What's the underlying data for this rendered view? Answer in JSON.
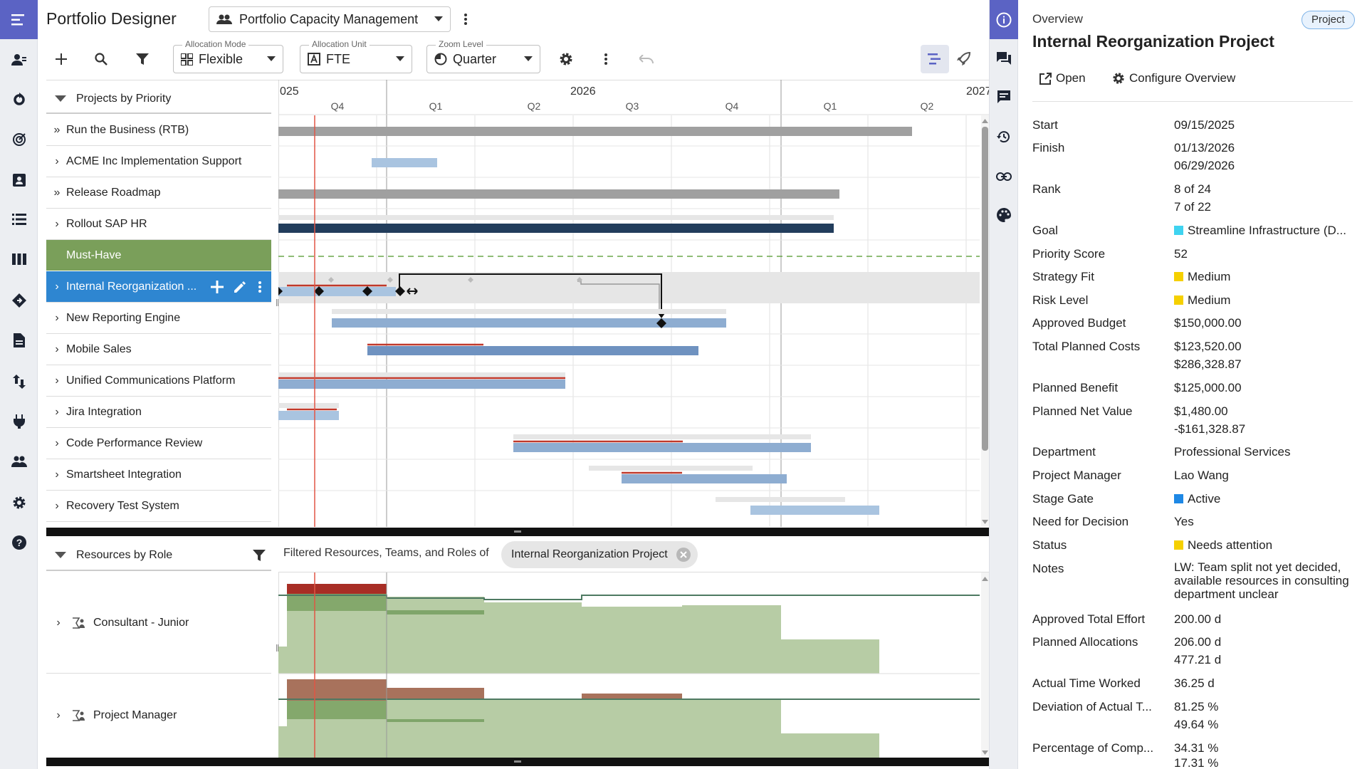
{
  "app": {
    "title": "Portfolio Designer",
    "portfolio": "Portfolio Capacity Management"
  },
  "toolbar": {
    "allocation_mode": {
      "legend": "Allocation Mode",
      "value": "Flexible"
    },
    "allocation_unit": {
      "legend": "Allocation Unit",
      "value": "FTE"
    },
    "zoom_level": {
      "legend": "Zoom Level",
      "value": "Quarter"
    }
  },
  "rail": [
    "menu-icon",
    "users-icon",
    "refresh-icon",
    "target-icon",
    "badge-icon",
    "list-icon",
    "columns-icon",
    "diamond-icon",
    "document-icon",
    "sort-icon",
    "plug-icon",
    "group-icon",
    "gear-icon",
    "help-icon"
  ],
  "projects": {
    "header": "Projects by Priority",
    "items": [
      {
        "label": "Run the Business (RTB)",
        "chev": "»"
      },
      {
        "label": "ACME Inc Implementation Support",
        "chev": "›"
      },
      {
        "label": "Release Roadmap",
        "chev": "»"
      },
      {
        "label": "Rollout SAP HR",
        "chev": "›"
      },
      {
        "label": "Must-Have",
        "chev": ""
      },
      {
        "label": "Internal Reorganization ...",
        "chev": "›"
      },
      {
        "label": "New Reporting Engine",
        "chev": "›"
      },
      {
        "label": "Mobile Sales",
        "chev": "›"
      },
      {
        "label": "Unified Communications Platform",
        "chev": "›"
      },
      {
        "label": "Jira Integration",
        "chev": "›"
      },
      {
        "label": "Code Performance Review",
        "chev": "›"
      },
      {
        "label": "Smartsheet Integration",
        "chev": "›"
      },
      {
        "label": "Recovery Test System",
        "chev": "›"
      }
    ]
  },
  "timeline": {
    "years": [
      "025",
      "2026",
      "2027"
    ],
    "quarters": [
      "Q4",
      "Q1",
      "Q2",
      "Q3",
      "Q4",
      "Q1",
      "Q2"
    ]
  },
  "resources": {
    "header": "Resources by Role",
    "filter_text": "Filtered Resources, Teams, and Roles of",
    "chip": "Internal Reorganization Project",
    "items": [
      "Consultant - Junior",
      "Project Manager"
    ]
  },
  "panel": {
    "section": "Overview",
    "badge": "Project",
    "title": "Internal Reorganization Project",
    "open": "Open",
    "configure": "Configure Overview",
    "fields": [
      {
        "k": "Start",
        "v": "09/15/2025"
      },
      {
        "k": "Finish",
        "v": "01/13/2026",
        "sub": "06/29/2026"
      },
      {
        "k": "Rank",
        "v": "8 of 24",
        "sub": "7 of 22"
      },
      {
        "k": "Goal",
        "v": "Streamline Infrastructure (D...",
        "sw": "#3fd3f0"
      },
      {
        "k": "Priority Score",
        "v": "52"
      },
      {
        "k": "Strategy Fit",
        "v": "Medium",
        "sw": "#f5d000"
      },
      {
        "k": "Risk Level",
        "v": "Medium",
        "sw": "#f5d000"
      },
      {
        "k": "Approved Budget",
        "v": "$150,000.00"
      },
      {
        "k": "Total Planned Costs",
        "v": "$123,520.00",
        "sub": "$286,328.87"
      },
      {
        "k": "Planned Benefit",
        "v": "$125,000.00"
      },
      {
        "k": "Planned Net Value",
        "v": "$1,480.00",
        "sub": "-$161,328.87"
      },
      {
        "k": "Department",
        "v": "Professional Services"
      },
      {
        "k": "Project Manager",
        "v": "Lao Wang"
      },
      {
        "k": "Stage Gate",
        "v": "Active",
        "sw": "#1e88e5"
      },
      {
        "k": "Need for Decision",
        "v": "Yes"
      },
      {
        "k": "Status",
        "v": "Needs attention",
        "sw": "#f5d000"
      },
      {
        "k": "Notes",
        "v": "LW: Team split not yet decided, available resources in consulting department unclear"
      },
      {
        "k": "Approved Total Effort",
        "v": "200.00 d"
      },
      {
        "k": "Planned Allocations",
        "v": "206.00 d",
        "sub": "477.21 d"
      },
      {
        "k": "Actual Time Worked",
        "v": "36.25 d"
      },
      {
        "k": "Deviation of Actual T...",
        "v": "81.25 %",
        "sub": "49.64 %"
      },
      {
        "k": "Percentage of Comp...",
        "v": "34.31 %",
        "sub": "17.31 %"
      }
    ]
  }
}
